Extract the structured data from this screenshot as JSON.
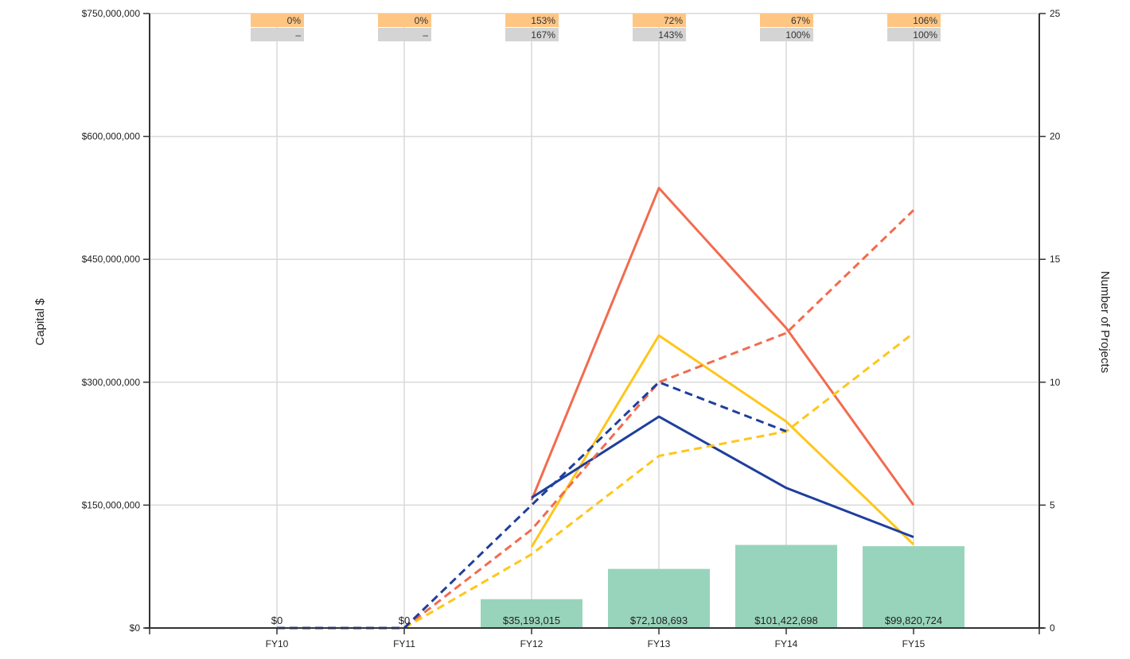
{
  "chart_data": {
    "type": "bar",
    "categories": [
      "FY10",
      "FY11",
      "FY12",
      "FY13",
      "FY14",
      "FY15"
    ],
    "y_left": {
      "label": "Capital $",
      "ylim": [
        0,
        750000000
      ],
      "ticks": [
        {
          "value": 0,
          "label": "$0"
        },
        {
          "value": 150000000,
          "label": "$150,000,000"
        },
        {
          "value": 300000000,
          "label": "$300,000,000"
        },
        {
          "value": 450000000,
          "label": "$450,000,000"
        },
        {
          "value": 600000000,
          "label": "$600,000,000"
        },
        {
          "value": 750000000,
          "label": "$750,000,000"
        }
      ]
    },
    "y_right": {
      "label": "Number of Projects",
      "ylim": [
        0,
        25
      ],
      "ticks": [
        {
          "value": 0,
          "label": "0"
        },
        {
          "value": 5,
          "label": "5"
        },
        {
          "value": 10,
          "label": "10"
        },
        {
          "value": 15,
          "label": "15"
        },
        {
          "value": 20,
          "label": "20"
        },
        {
          "value": 25,
          "label": "25"
        }
      ]
    },
    "bars": {
      "color": "#98d4bb",
      "values": [
        0,
        0,
        35193015,
        72108693,
        101422698,
        99820724
      ],
      "labels": [
        "$0",
        "$0",
        "$35,193,015",
        "$72,108,693",
        "$101,422,698",
        "$99,820,724"
      ]
    },
    "lines": [
      {
        "color": "#f26b4f",
        "dash": false,
        "values": [
          null,
          null,
          5.2,
          17.9,
          12.2,
          5.0
        ]
      },
      {
        "color": "#ffc61a",
        "dash": false,
        "values": [
          null,
          null,
          3.3,
          11.9,
          8.4,
          3.4
        ]
      },
      {
        "color": "#1f3f9c",
        "dash": false,
        "values": [
          null,
          null,
          5.3,
          8.6,
          5.7,
          3.7
        ]
      },
      {
        "color": "#f26b4f",
        "dash": true,
        "values": [
          0,
          0,
          4.0,
          10.0,
          12.0,
          17.0
        ]
      },
      {
        "color": "#ffc61a",
        "dash": true,
        "values": [
          0,
          0,
          3.0,
          7.0,
          8.0,
          12.0
        ]
      },
      {
        "color": "#1f3f9c",
        "dash": true,
        "values": [
          0,
          0,
          5.0,
          10.0,
          8.0,
          null
        ]
      }
    ],
    "percent_rows": [
      {
        "color": "#ffc683",
        "values": [
          "0%",
          "0%",
          "153%",
          "72%",
          "67%",
          "106%"
        ]
      },
      {
        "color": "#d4d4d4",
        "values": [
          "–",
          "–",
          "167%",
          "143%",
          "100%",
          "100%"
        ]
      }
    ],
    "grid": true
  }
}
